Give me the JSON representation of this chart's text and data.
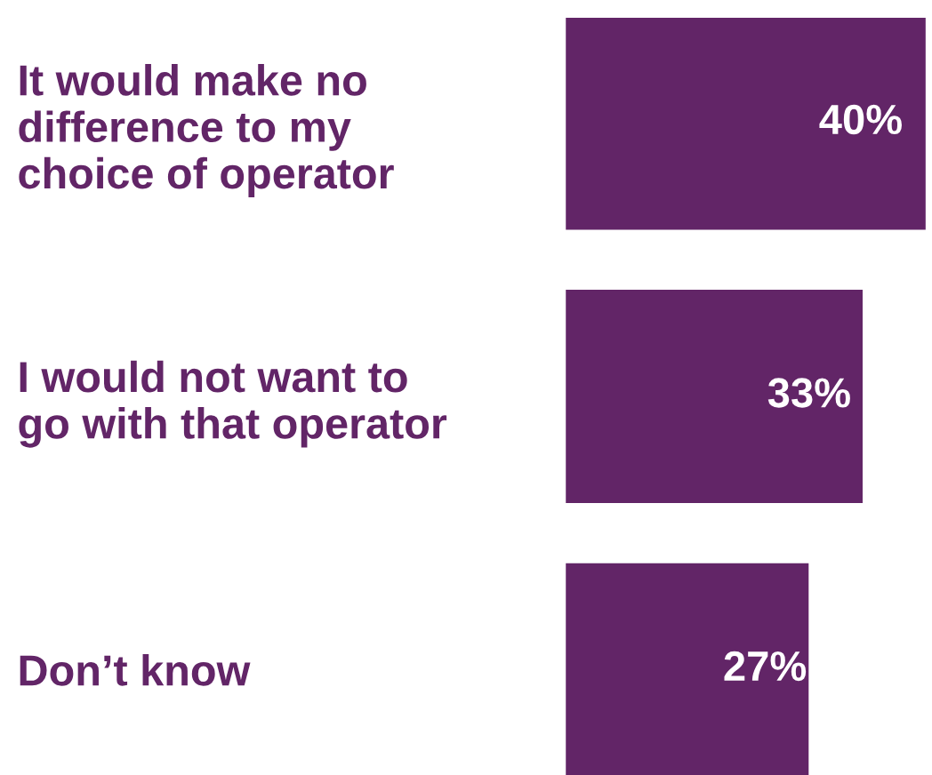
{
  "chart_data": {
    "type": "bar",
    "orientation": "horizontal",
    "categories": [
      "It would make no\ndifference to my\nchoice of operator",
      "I would not want to\ngo with that operator",
      "Don’t know"
    ],
    "values": [
      40,
      33,
      27
    ],
    "value_labels": [
      "40%",
      "33%",
      "27%"
    ],
    "color": "#622567"
  }
}
